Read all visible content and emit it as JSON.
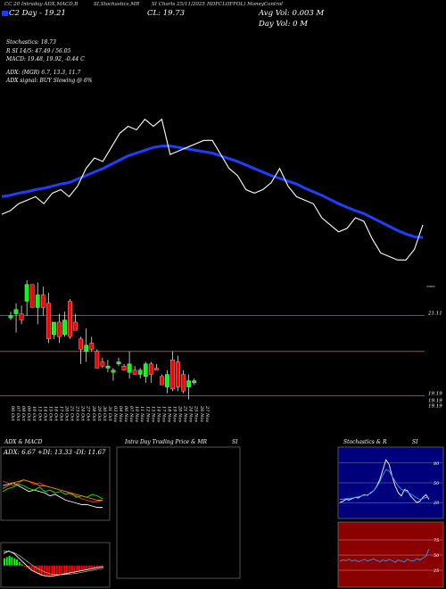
{
  "header": {
    "line1": [
      {
        "text": "CC 20 Intraday ADX,MACD,B",
        "x": 0
      },
      {
        "text": "SI,Stochastics,MR",
        "x": 105
      },
      {
        "text": "SI Charts 25/11/2025 ",
        "x": 170
      },
      {
        "text": "HDFCLOFFOL) MoneyControl",
        "x": 232
      }
    ],
    "swatch_color": "#1e3cff",
    "line2": "C2  Day -  19.21",
    "close": "CL: 19.73",
    "avg_vol": "Avg Vol: 0.003 M",
    "day_vol": "Day Vol: 0   M"
  },
  "stats": {
    "stochastics": "Stochastics: 18.73",
    "r_si": "R                        SI 14/5: 47.49 / 56.05",
    "macd": "MACD: 19.48,  19.92,  -0.44   C",
    "adx": "ADX:                                  (MGR) 6.7,   13.3,   11.7",
    "adx_signal": "ADX  signal:                                          BUY Slowing @ 6%"
  },
  "colors": {
    "bull": "#00ff00",
    "bear": "#ff0000",
    "ema": "#1f3fff",
    "price_line": "#ffffff",
    "level_line": "#a0522d",
    "stoch_bg": "#00007d",
    "rsi_bg": "#8b0000"
  },
  "chart_data": [
    {
      "type": "line",
      "name": "price_overview",
      "price": [
        19.95,
        20.0,
        20.1,
        20.15,
        20.2,
        20.1,
        20.25,
        20.3,
        20.2,
        20.35,
        20.6,
        20.75,
        20.7,
        20.9,
        21.1,
        21.2,
        21.15,
        21.3,
        21.2,
        21.3,
        20.8,
        20.85,
        20.9,
        20.95,
        21.0,
        21.0,
        20.8,
        20.6,
        20.5,
        20.3,
        20.25,
        20.3,
        20.4,
        20.6,
        20.35,
        20.2,
        20.15,
        20.1,
        19.9,
        19.8,
        19.7,
        19.75,
        19.9,
        19.85,
        19.6,
        19.4,
        19.35,
        19.3,
        19.3,
        19.45,
        19.8
      ],
      "ema": [
        20.2,
        20.22,
        20.25,
        20.27,
        20.3,
        20.32,
        20.35,
        20.38,
        20.4,
        20.45,
        20.5,
        20.55,
        20.6,
        20.66,
        20.72,
        20.78,
        20.82,
        20.86,
        20.9,
        20.92,
        20.92,
        20.9,
        20.88,
        20.86,
        20.84,
        20.82,
        20.78,
        20.74,
        20.7,
        20.65,
        20.6,
        20.55,
        20.5,
        20.46,
        20.42,
        20.38,
        20.32,
        20.27,
        20.22,
        20.16,
        20.1,
        20.05,
        20.0,
        19.96,
        19.9,
        19.84,
        19.78,
        19.72,
        19.67,
        19.63,
        19.62
      ],
      "ylim": [
        19.0,
        21.6
      ]
    },
    {
      "type": "candlestick",
      "name": "price_candles",
      "dates": [
        "06 Oct",
        "07 Oct",
        "08 Oct",
        "09 Oct",
        "10 Oct",
        "13 Oct",
        "14 Oct",
        "15 Oct",
        "16 Oct",
        "17 Oct",
        "20 Oct",
        "21 Oct",
        "23 Oct",
        "24 Oct",
        "27 Oct",
        "28 Oct",
        "29 Oct",
        "30 Oct",
        "31 Oct",
        "03 Nov",
        "04 Nov",
        "06 Nov",
        "07 Nov",
        "10 Nov",
        "11 Nov",
        "12 Nov",
        "13 Nov",
        "14 Nov",
        "17 Nov",
        "18 Nov",
        "19 Nov",
        "20 Nov",
        "21 Nov",
        "24 Nov",
        "25 Nov"
      ],
      "tick_labels": [
        "06 Oct",
        "07 Oct",
        "08 Oct",
        "09 Oct",
        "10 Oct",
        "13 Oct",
        "14 Oct",
        "15 Oct",
        "16 Oct",
        "17 Oct",
        "20 Oct",
        "21 Oct",
        "23 Oct",
        "24 Oct",
        "27 Oct",
        "28 Oct",
        "29 Oct",
        "30 Oct",
        "31 Oct",
        "03 Nov",
        "04 Nov",
        "06 Nov",
        "07 Nov",
        "10 Nov",
        "11 Nov",
        "12 Nov",
        "13 Nov",
        "14 Nov",
        "17 Nov",
        "18 Nov",
        "19 Nov",
        "20 Nov",
        "21 Nov",
        "24 Nov",
        "25 Nov",
        "26 Nov",
        "27 Nov"
      ],
      "open": [
        21.05,
        21.15,
        21.15,
        21.45,
        21.85,
        21.3,
        21.6,
        21.4,
        20.65,
        20.95,
        20.65,
        21.45,
        20.95,
        20.55,
        20.25,
        20.45,
        20.25,
        20.0,
        19.85,
        19.75,
        19.95,
        19.9,
        19.75,
        19.8,
        19.7,
        19.65,
        19.95,
        19.85,
        19.65,
        19.4,
        20.05,
        20.0,
        19.7,
        19.4,
        19.5
      ],
      "high": [
        21.2,
        21.4,
        21.35,
        21.95,
        21.85,
        21.9,
        21.8,
        21.65,
        20.95,
        21.15,
        21.2,
        21.5,
        21.15,
        20.6,
        20.8,
        20.6,
        20.3,
        20.1,
        20.05,
        19.85,
        20.1,
        19.95,
        20.25,
        19.9,
        19.85,
        20.0,
        20.0,
        19.95,
        19.7,
        19.8,
        20.25,
        20.15,
        19.8,
        19.7,
        19.6
      ],
      "low": [
        21.0,
        20.7,
        20.9,
        21.1,
        21.3,
        20.9,
        21.1,
        20.45,
        20.55,
        20.45,
        20.6,
        20.55,
        20.75,
        19.95,
        20.0,
        20.25,
        19.85,
        19.85,
        19.75,
        19.55,
        19.9,
        19.8,
        19.6,
        19.7,
        19.6,
        19.5,
        19.5,
        19.8,
        19.45,
        19.25,
        19.3,
        19.3,
        19.25,
        19.1,
        19.45
      ],
      "close": [
        21.1,
        21.25,
        21.0,
        21.85,
        21.3,
        21.6,
        21.3,
        20.55,
        20.95,
        20.6,
        21.0,
        20.6,
        20.75,
        20.3,
        20.4,
        20.3,
        19.85,
        19.9,
        19.9,
        19.8,
        20.0,
        19.8,
        19.95,
        19.7,
        19.8,
        19.95,
        19.7,
        19.8,
        19.45,
        19.7,
        19.35,
        19.4,
        19.3,
        19.55,
        19.55
      ],
      "levels": [
        {
          "value": 21.11,
          "label": "21.11"
        },
        {
          "value": 20.25,
          "label": ""
        },
        {
          "value": 19.19,
          "label": "19.19"
        }
      ],
      "side_labels": [
        "19.19",
        "19.19"
      ],
      "ylim": [
        19.05,
        22.25
      ]
    },
    {
      "type": "line",
      "name": "adx_panel",
      "title": "ADX  & MACD",
      "ylim": [
        0,
        40
      ],
      "series": [
        {
          "name": "adx",
          "color": "#ffffff",
          "values": [
            22,
            23,
            24,
            22,
            20,
            18,
            19,
            18,
            17,
            15,
            16,
            14,
            12,
            11,
            10,
            9,
            9,
            8,
            7,
            7
          ]
        },
        {
          "name": "plus_di",
          "color": "#00ff00",
          "values": [
            18,
            20,
            21,
            23,
            22,
            20,
            19,
            21,
            18,
            19,
            17,
            18,
            16,
            17,
            14,
            15,
            14,
            16,
            15,
            13
          ]
        },
        {
          "name": "minus_di",
          "color": "#ff4040",
          "values": [
            25,
            24,
            22,
            24,
            26,
            25,
            23,
            24,
            22,
            21,
            20,
            19,
            18,
            16,
            15,
            13,
            12,
            11,
            11,
            12
          ]
        },
        {
          "name": "adxr",
          "color": "#ff8c00",
          "values": [
            20,
            22,
            24,
            25,
            26,
            25,
            24,
            22,
            22,
            21,
            20,
            19,
            18,
            17,
            16,
            15,
            14,
            13,
            12,
            12
          ]
        }
      ]
    },
    {
      "type": "bar",
      "name": "macd_panel",
      "histogram": [
        0.3,
        0.35,
        0.4,
        0.35,
        0.3,
        0.25,
        0.15,
        0.05,
        -0.05,
        -0.1,
        -0.15,
        -0.2,
        -0.25,
        -0.3,
        -0.35,
        -0.38,
        -0.4,
        -0.42,
        -0.44,
        -0.44,
        -0.43,
        -0.42,
        -0.4,
        -0.38,
        -0.36,
        -0.34,
        -0.32,
        -0.3,
        -0.28,
        -0.26,
        -0.24,
        -0.22,
        -0.2,
        -0.18,
        -0.16,
        -0.14,
        -0.12,
        -0.1,
        -0.08,
        -0.06
      ],
      "macd": [
        0.5,
        0.55,
        0.6,
        0.55,
        0.5,
        0.4,
        0.3,
        0.2,
        0.1,
        0.0,
        -0.1,
        -0.2,
        -0.25,
        -0.3,
        -0.35,
        -0.4,
        -0.42,
        -0.44,
        -0.45,
        -0.44,
        -0.42,
        -0.4,
        -0.38,
        -0.36,
        -0.34,
        -0.32,
        -0.3,
        -0.28,
        -0.26,
        -0.24,
        -0.22,
        -0.2,
        -0.18,
        -0.16,
        -0.14,
        -0.12,
        -0.1,
        -0.08,
        -0.06,
        -0.05
      ],
      "signal": [
        0.6,
        0.6,
        0.58,
        0.56,
        0.53,
        0.48,
        0.42,
        0.35,
        0.27,
        0.19,
        0.11,
        0.03,
        -0.04,
        -0.1,
        -0.16,
        -0.21,
        -0.26,
        -0.3,
        -0.34,
        -0.36,
        -0.37,
        -0.38,
        -0.38,
        -0.38,
        -0.37,
        -0.36,
        -0.35,
        -0.34,
        -0.32,
        -0.31,
        -0.29,
        -0.27,
        -0.25,
        -0.23,
        -0.21,
        -0.19,
        -0.17,
        -0.15,
        -0.13,
        -0.11
      ],
      "ylim": [
        -0.6,
        0.8
      ]
    },
    {
      "type": "line",
      "name": "intraday_panel",
      "title": "Intra  Day Trading Price  & MR",
      "series": []
    },
    {
      "type": "line",
      "name": "stochastics_panel",
      "title": "Stochastics & R",
      "ylim": [
        0,
        100
      ],
      "tick_labels": [
        "80",
        "50",
        "20"
      ],
      "series": [
        {
          "name": "k",
          "color": "#ffffff",
          "values": [
            20,
            22,
            25,
            24,
            26,
            28,
            27,
            30,
            32,
            31,
            35,
            38,
            45,
            55,
            70,
            85,
            78,
            60,
            45,
            35,
            30,
            40,
            38,
            30,
            25,
            20,
            22,
            28,
            32,
            25
          ]
        },
        {
          "name": "d",
          "color": "#3399ff",
          "values": [
            25,
            25,
            26,
            26,
            27,
            28,
            29,
            30,
            31,
            32,
            34,
            38,
            44,
            52,
            62,
            70,
            68,
            60,
            52,
            45,
            40,
            38,
            36,
            33,
            30,
            27,
            25,
            26,
            28,
            27
          ]
        }
      ]
    },
    {
      "type": "line",
      "name": "rsi_panel",
      "title": "SI",
      "ylim": [
        0,
        100
      ],
      "tick_labels": [
        "75",
        "50",
        "25"
      ],
      "series": [
        {
          "name": "rsi",
          "color": "#3399ff",
          "values": [
            40,
            42,
            41,
            43,
            40,
            42,
            39,
            41,
            43,
            40,
            42,
            44,
            41,
            39,
            42,
            40,
            43,
            41,
            38,
            42,
            40,
            39,
            43,
            41,
            40,
            44,
            42,
            45,
            48,
            60
          ]
        }
      ]
    }
  ]
}
